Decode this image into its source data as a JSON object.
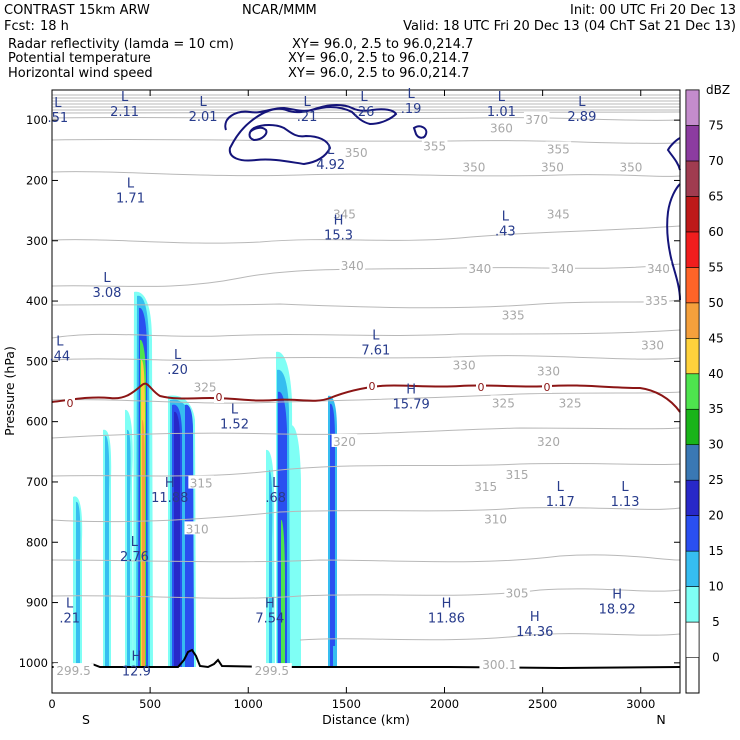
{
  "header": {
    "model": "CONTRAST 15km ARW",
    "center": "NCAR/MMM",
    "init": "Init: 00 UTC Fri 20 Dec 13",
    "fcst_label": "Fcst:",
    "fcst_value": "18 h",
    "valid": "Valid: 18 UTC Fri 20 Dec 13 (04 ChT Sat 21 Dec 13)",
    "fields": [
      {
        "name": "Radar reflectivity (lamda = 10 cm)",
        "xy": "XY=   96.0,   2.5 to   96.0,214.7",
        "color": "#000000"
      },
      {
        "name": "Potential temperature",
        "xy": "XY=   96.0,   2.5 to   96.0,214.7",
        "color": "#bdbdbd"
      },
      {
        "name": "Horizontal wind speed",
        "xy": "XY=   96.0,   2.5 to   96.0,214.7",
        "color": "#1e1e8c"
      }
    ]
  },
  "chart_data": {
    "type": "cross-section",
    "xlabel": "Distance (km)",
    "ylabel": "Pressure (hPa)",
    "xlim": [
      0,
      3200
    ],
    "ylim": [
      1050,
      50
    ],
    "x_ticks": [
      0,
      500,
      1000,
      1500,
      2000,
      2500,
      3000
    ],
    "y_ticks": [
      100,
      200,
      300,
      400,
      500,
      600,
      700,
      800,
      900,
      1000
    ],
    "x_end_labels": {
      "left": "S",
      "right": "N"
    },
    "colorbar": {
      "label": "dBZ",
      "levels": [
        0,
        5,
        10,
        15,
        20,
        25,
        30,
        35,
        40,
        45,
        50,
        55,
        60,
        65,
        70,
        75
      ],
      "colors": [
        "#ffffff",
        "#7ffff5",
        "#36bdf0",
        "#2a4ff0",
        "#2828c8",
        "#3a78b4",
        "#19b419",
        "#4ee44e",
        "#ffd23c",
        "#f5a03c",
        "#ff6428",
        "#f01e1e",
        "#be1919",
        "#a03c50",
        "#8c3ca0",
        "#c48ccc"
      ]
    },
    "freezing_level_label": "0",
    "theta_labels": [
      {
        "text": "370",
        "x": 2470,
        "p": 98
      },
      {
        "text": "360",
        "x": 2290,
        "p": 112
      },
      {
        "text": "355",
        "x": 1950,
        "p": 142
      },
      {
        "text": "355",
        "x": 2580,
        "p": 147
      },
      {
        "text": "350",
        "x": 1550,
        "p": 153
      },
      {
        "text": "350",
        "x": 2150,
        "p": 177
      },
      {
        "text": "350",
        "x": 2550,
        "p": 177
      },
      {
        "text": "350",
        "x": 2950,
        "p": 177
      },
      {
        "text": "345",
        "x": 1490,
        "p": 255
      },
      {
        "text": "345",
        "x": 2580,
        "p": 255
      },
      {
        "text": "340",
        "x": 1530,
        "p": 340
      },
      {
        "text": "340",
        "x": 2180,
        "p": 345
      },
      {
        "text": "340",
        "x": 2600,
        "p": 345
      },
      {
        "text": "340",
        "x": 3090,
        "p": 345
      },
      {
        "text": "335",
        "x": 2350,
        "p": 422
      },
      {
        "text": "335",
        "x": 3080,
        "p": 398
      },
      {
        "text": "330",
        "x": 2100,
        "p": 505
      },
      {
        "text": "330",
        "x": 2530,
        "p": 515
      },
      {
        "text": "330",
        "x": 3060,
        "p": 472
      },
      {
        "text": "325",
        "x": 780,
        "p": 542
      },
      {
        "text": "325",
        "x": 2300,
        "p": 568
      },
      {
        "text": "325",
        "x": 2640,
        "p": 568
      },
      {
        "text": "320",
        "x": 1490,
        "p": 632
      },
      {
        "text": "320",
        "x": 2530,
        "p": 632
      },
      {
        "text": "315",
        "x": 760,
        "p": 701
      },
      {
        "text": "315",
        "x": 2210,
        "p": 707
      },
      {
        "text": "315",
        "x": 2370,
        "p": 687
      },
      {
        "text": "310",
        "x": 740,
        "p": 777
      },
      {
        "text": "310",
        "x": 2260,
        "p": 761
      },
      {
        "text": "305",
        "x": 2370,
        "p": 883
      },
      {
        "text": "300.1",
        "x": 2280,
        "p": 1002
      },
      {
        "text": "299.5",
        "x": 110,
        "p": 1012
      },
      {
        "text": "299.5",
        "x": 1120,
        "p": 1012
      }
    ],
    "extrema": [
      {
        "type": "L",
        "value": ".51",
        "x": 30,
        "p": 90
      },
      {
        "type": "L",
        "value": "2.11",
        "x": 370,
        "p": 80
      },
      {
        "type": "L",
        "value": "2.01",
        "x": 770,
        "p": 88
      },
      {
        "type": "L",
        "value": ".21",
        "x": 1300,
        "p": 88
      },
      {
        "type": "L",
        "value": ".26",
        "x": 1590,
        "p": 80
      },
      {
        "type": "L",
        "value": ".19",
        "x": 1830,
        "p": 75
      },
      {
        "type": "L",
        "value": "1.01",
        "x": 2290,
        "p": 80
      },
      {
        "type": "L",
        "value": "2.89",
        "x": 2700,
        "p": 88
      },
      {
        "type": "L",
        "value": "4.92",
        "x": 1420,
        "p": 168
      },
      {
        "type": "L",
        "value": "1.71",
        "x": 400,
        "p": 223
      },
      {
        "type": "L",
        "value": ".43",
        "x": 2310,
        "p": 278
      },
      {
        "type": "H",
        "value": "15.3",
        "x": 1460,
        "p": 285
      },
      {
        "type": "L",
        "value": "3.08",
        "x": 280,
        "p": 380
      },
      {
        "type": "L",
        "value": ".44",
        "x": 40,
        "p": 485
      },
      {
        "type": "L",
        "value": "7.61",
        "x": 1650,
        "p": 475
      },
      {
        "type": "L",
        "value": ".20",
        "x": 640,
        "p": 508
      },
      {
        "type": "H",
        "value": "15.79",
        "x": 1830,
        "p": 565
      },
      {
        "type": "L",
        "value": "1.52",
        "x": 930,
        "p": 598
      },
      {
        "type": "H",
        "value": "11.88",
        "x": 600,
        "p": 720
      },
      {
        "type": "L",
        "value": ".68",
        "x": 1140,
        "p": 720
      },
      {
        "type": "L",
        "value": "1.17",
        "x": 2590,
        "p": 727
      },
      {
        "type": "L",
        "value": "1.13",
        "x": 2920,
        "p": 727
      },
      {
        "type": "L",
        "value": "2.76",
        "x": 420,
        "p": 818
      },
      {
        "type": "L",
        "value": ".21",
        "x": 90,
        "p": 920
      },
      {
        "type": "H",
        "value": "7.54",
        "x": 1110,
        "p": 920
      },
      {
        "type": "H",
        "value": "11.86",
        "x": 2010,
        "p": 920
      },
      {
        "type": "H",
        "value": "18.92",
        "x": 2880,
        "p": 905
      },
      {
        "type": "H",
        "value": "14.36",
        "x": 2460,
        "p": 942
      },
      {
        "type": "H",
        "value": "12.9",
        "x": 430,
        "p": 1008
      }
    ]
  }
}
